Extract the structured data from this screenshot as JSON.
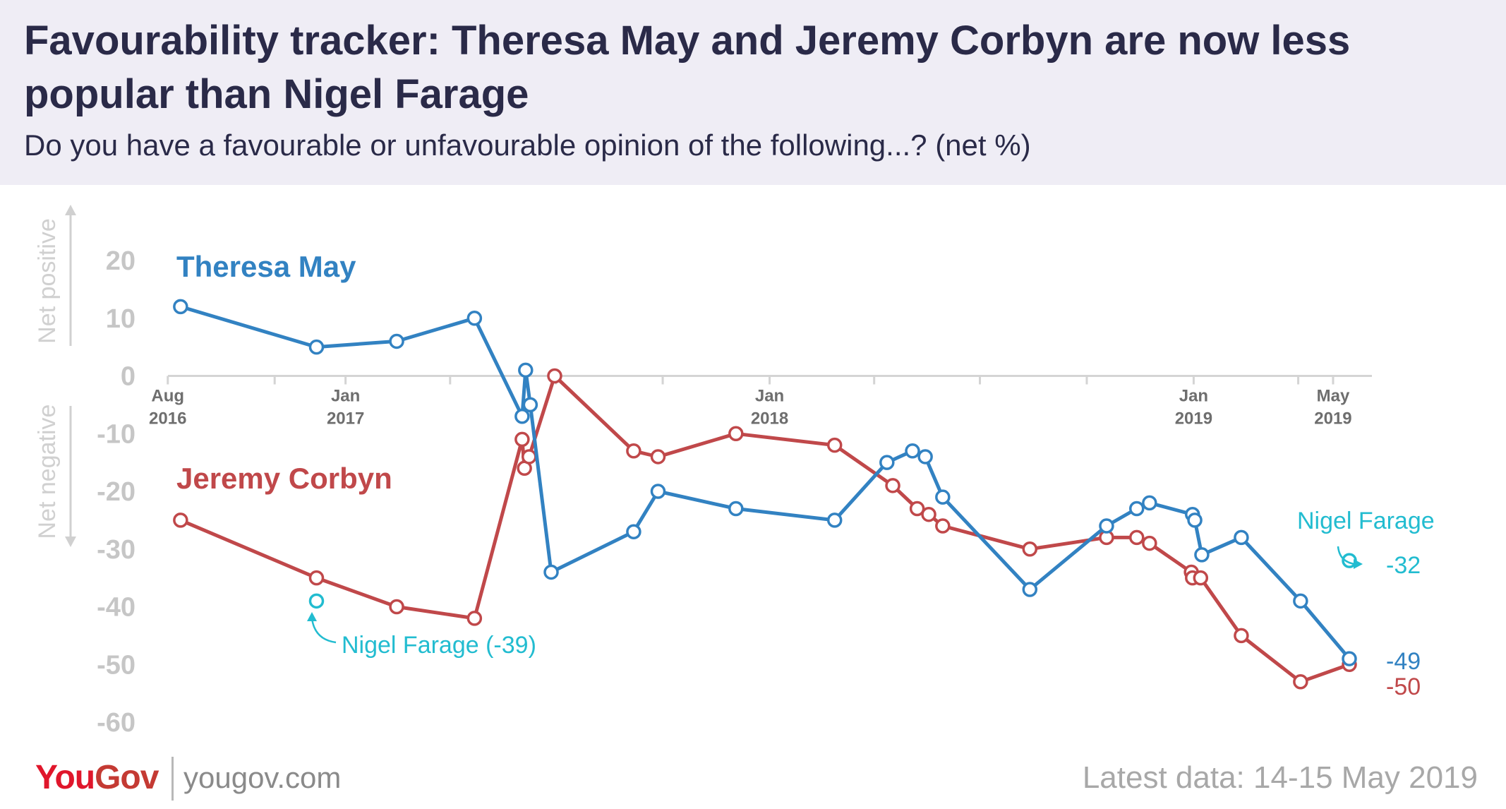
{
  "header": {
    "title": "Favourability tracker: Theresa May and Jeremy Corbyn are now less popular than Nigel Farage",
    "subtitle": "Do you have a favourable or unfavourable opinion of the following...? (net %)"
  },
  "footer": {
    "brand_you": "You",
    "brand_gov": "Gov",
    "url": "yougov.com",
    "latest": "Latest data: 14-15 May 2019"
  },
  "colors": {
    "may": "#3282c2",
    "corbyn": "#c0484a",
    "farage": "#22bcd0",
    "axis_tick": "#6e6e6e",
    "y_tick": "#c6c6c6",
    "net_label": "#d0d0d0"
  },
  "chart_data": {
    "type": "line",
    "title": "Favourability tracker: Theresa May and Jeremy Corbyn are now less popular than Nigel Farage",
    "subtitle": "Do you have a favourable or unfavourable opinion of the following...? (net %)",
    "ylim": [
      -60,
      20
    ],
    "yticks": [
      "20",
      "10",
      "0",
      "-10",
      "-20",
      "-30",
      "-40",
      "-50",
      "-60"
    ],
    "y_ticks_values": [
      20,
      10,
      0,
      -10,
      -20,
      -30,
      -40,
      -50,
      -60
    ],
    "y_direction_labels": {
      "positive": "Net positive",
      "negative": "Net negative"
    },
    "x_ticks": [
      {
        "date": "2016-08-01",
        "line1": "Aug",
        "line2": "2016"
      },
      {
        "date": "2016-11-01",
        "line1": "",
        "line2": ""
      },
      {
        "date": "2017-01-01",
        "line1": "Jan",
        "line2": "2017"
      },
      {
        "date": "2017-04-01",
        "line1": "",
        "line2": ""
      },
      {
        "date": "2017-07-01",
        "line1": "",
        "line2": ""
      },
      {
        "date": "2017-10-01",
        "line1": "",
        "line2": ""
      },
      {
        "date": "2018-01-01",
        "line1": "Jan",
        "line2": "2018"
      },
      {
        "date": "2018-04-01",
        "line1": "",
        "line2": ""
      },
      {
        "date": "2018-07-01",
        "line1": "",
        "line2": ""
      },
      {
        "date": "2018-10-01",
        "line1": "",
        "line2": ""
      },
      {
        "date": "2019-01-01",
        "line1": "Jan",
        "line2": "2019"
      },
      {
        "date": "2019-04-01",
        "line1": "",
        "line2": ""
      },
      {
        "date": "2019-05-01",
        "line1": "May",
        "line2": "2019"
      }
    ],
    "xlim": [
      "2016-07-20",
      "2019-06-01"
    ],
    "grid": false,
    "series": [
      {
        "name": "Theresa May",
        "color": "#3282c2",
        "points": [
          [
            "2016-08-12",
            12
          ],
          [
            "2016-12-07",
            5
          ],
          [
            "2017-02-14",
            6
          ],
          [
            "2017-04-22",
            10
          ],
          [
            "2017-06-02",
            -7
          ],
          [
            "2017-06-05",
            1
          ],
          [
            "2017-06-09",
            -5
          ],
          [
            "2017-06-27",
            -34
          ],
          [
            "2017-09-06",
            -27
          ],
          [
            "2017-09-27",
            -20
          ],
          [
            "2017-12-03",
            -23
          ],
          [
            "2018-02-26",
            -25
          ],
          [
            "2018-04-12",
            -15
          ],
          [
            "2018-05-04",
            -13
          ],
          [
            "2018-05-15",
            -14
          ],
          [
            "2018-05-30",
            -21
          ],
          [
            "2018-08-13",
            -37
          ],
          [
            "2018-10-18",
            -26
          ],
          [
            "2018-11-13",
            -23
          ],
          [
            "2018-11-24",
            -22
          ],
          [
            "2018-12-31",
            -24
          ],
          [
            "2019-01-02",
            -25
          ],
          [
            "2019-01-08",
            -31
          ],
          [
            "2019-02-11",
            -28
          ],
          [
            "2019-04-03",
            -39
          ],
          [
            "2019-05-15",
            -49
          ]
        ],
        "last_label": "-49"
      },
      {
        "name": "Jeremy Corbyn",
        "color": "#c0484a",
        "points": [
          [
            "2016-08-12",
            -25
          ],
          [
            "2016-12-07",
            -35
          ],
          [
            "2017-02-14",
            -40
          ],
          [
            "2017-04-22",
            -42
          ],
          [
            "2017-06-02",
            -11
          ],
          [
            "2017-06-04",
            -16
          ],
          [
            "2017-06-08",
            -14
          ],
          [
            "2017-06-30",
            0
          ],
          [
            "2017-09-06",
            -13
          ],
          [
            "2017-09-27",
            -14
          ],
          [
            "2017-12-03",
            -10
          ],
          [
            "2018-02-26",
            -12
          ],
          [
            "2018-04-17",
            -19
          ],
          [
            "2018-05-08",
            -23
          ],
          [
            "2018-05-18",
            -24
          ],
          [
            "2018-05-30",
            -26
          ],
          [
            "2018-08-13",
            -30
          ],
          [
            "2018-10-18",
            -28
          ],
          [
            "2018-11-13",
            -28
          ],
          [
            "2018-11-24",
            -29
          ],
          [
            "2018-12-30",
            -34
          ],
          [
            "2018-12-31",
            -35
          ],
          [
            "2019-01-07",
            -35
          ],
          [
            "2019-02-11",
            -45
          ],
          [
            "2019-04-03",
            -53
          ],
          [
            "2019-05-15",
            -50
          ]
        ],
        "last_label": "-50"
      },
      {
        "name": "Nigel Farage",
        "color": "#22bcd0",
        "points": [
          [
            "2016-12-07",
            -39
          ],
          [
            "2019-05-15",
            -32
          ]
        ]
      }
    ],
    "series_labels": {
      "may": "Theresa May",
      "corbyn": "Jeremy Corbyn",
      "farage_2016": "Nigel Farage (-39)",
      "farage_2019": "Nigel Farage",
      "farage_2019_value": "-32",
      "arrow_glyph": "↖"
    }
  }
}
